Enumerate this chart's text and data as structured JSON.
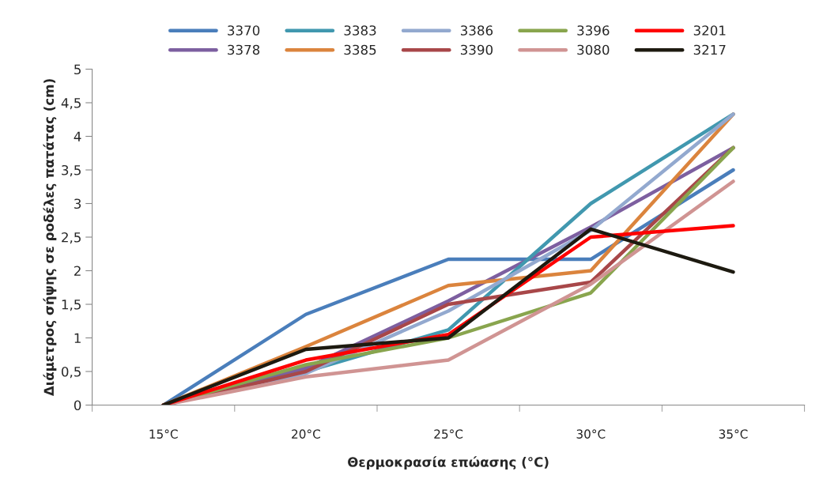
{
  "chart_data": {
    "type": "line",
    "xlabel": "Θερμοκρασία επώασης (°C)",
    "ylabel": "Διάμετρος σήψης σε ροδέλες πατάτας (cm)",
    "categories": [
      "15°C",
      "20°C",
      "25°C",
      "30°C",
      "35°C"
    ],
    "ylim": [
      0,
      5
    ],
    "yticks": [
      0,
      {
        "value": 0.5,
        "label": "0,5"
      },
      1,
      {
        "value": 1.5,
        "label": "1,5"
      },
      2,
      {
        "value": 2.5,
        "label": "2,5"
      },
      3,
      {
        "value": 3.5,
        "label": "3,5"
      },
      4,
      {
        "value": 4.5,
        "label": "4,5"
      },
      5
    ],
    "grid": false,
    "legend": "top",
    "marker": "none",
    "line_style": "solid",
    "series": [
      {
        "name": "3370",
        "color": "#4a7ebb",
        "values": [
          0,
          1.35,
          2.17,
          2.17,
          3.5
        ]
      },
      {
        "name": "3378",
        "color": "#7d5fa0",
        "values": [
          0,
          0.55,
          1.55,
          2.65,
          3.83
        ]
      },
      {
        "name": "3383",
        "color": "#4198af",
        "values": [
          0,
          0.5,
          1.12,
          3.0,
          4.33
        ]
      },
      {
        "name": "3385",
        "color": "#db843d",
        "values": [
          0,
          0.87,
          1.78,
          2.0,
          4.33
        ]
      },
      {
        "name": "3386",
        "color": "#93a9cf",
        "values": [
          0,
          0.47,
          1.4,
          2.6,
          4.33
        ]
      },
      {
        "name": "3390",
        "color": "#a84749",
        "values": [
          0,
          0.5,
          1.5,
          1.83,
          3.83
        ]
      },
      {
        "name": "3396",
        "color": "#89a54e",
        "values": [
          0,
          0.6,
          1.0,
          1.67,
          3.83
        ]
      },
      {
        "name": "3080",
        "color": "#d09493",
        "values": [
          0,
          0.42,
          0.67,
          1.8,
          3.33
        ]
      },
      {
        "name": "3201",
        "color": "#ff0000",
        "values": [
          0,
          0.67,
          1.05,
          2.5,
          2.67
        ]
      },
      {
        "name": "3217",
        "color": "#1d1a10",
        "values": [
          0,
          0.83,
          1.0,
          2.62,
          1.98
        ]
      }
    ]
  }
}
